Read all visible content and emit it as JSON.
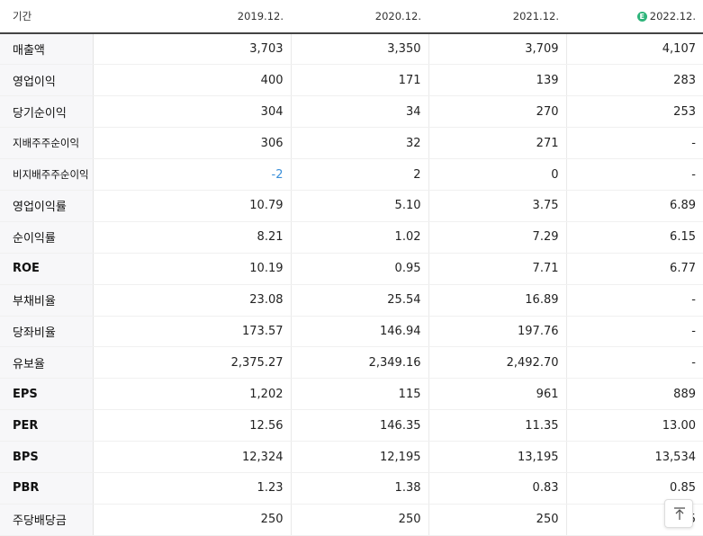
{
  "header": {
    "label": "기간",
    "periods": [
      "2019.12.",
      "2020.12.",
      "2021.12.",
      "2022.12."
    ],
    "estimate_icon": "estimate-e-icon",
    "estimate_icon_letter": "E",
    "estimate_icon_color": "#2eb47a"
  },
  "rows": [
    {
      "label": "매출액",
      "values": [
        "3,703",
        "3,350",
        "3,709",
        "4,107"
      ]
    },
    {
      "label": "영업이익",
      "values": [
        "400",
        "171",
        "139",
        "283"
      ]
    },
    {
      "label": "당기순이익",
      "values": [
        "304",
        "34",
        "270",
        "253"
      ]
    },
    {
      "label": "지배주주순이익",
      "values": [
        "306",
        "32",
        "271",
        "-"
      ]
    },
    {
      "label": "비지배주주순이익",
      "values": [
        "-2",
        "2",
        "0",
        "-"
      ]
    },
    {
      "label": "영업이익률",
      "values": [
        "10.79",
        "5.10",
        "3.75",
        "6.89"
      ]
    },
    {
      "label": "순이익률",
      "values": [
        "8.21",
        "1.02",
        "7.29",
        "6.15"
      ]
    },
    {
      "label": "ROE",
      "values": [
        "10.19",
        "0.95",
        "7.71",
        "6.77"
      ]
    },
    {
      "label": "부채비율",
      "values": [
        "23.08",
        "25.54",
        "16.89",
        "-"
      ]
    },
    {
      "label": "당좌비율",
      "values": [
        "173.57",
        "146.94",
        "197.76",
        "-"
      ]
    },
    {
      "label": "유보율",
      "values": [
        "2,375.27",
        "2,349.16",
        "2,492.70",
        "-"
      ]
    },
    {
      "label": "EPS",
      "values": [
        "1,202",
        "115",
        "961",
        "889"
      ]
    },
    {
      "label": "PER",
      "values": [
        "12.56",
        "146.35",
        "11.35",
        "13.00"
      ]
    },
    {
      "label": "BPS",
      "values": [
        "12,324",
        "12,195",
        "13,195",
        "13,534"
      ]
    },
    {
      "label": "PBR",
      "values": [
        "1.23",
        "1.38",
        "0.83",
        "0.85"
      ]
    },
    {
      "label": "주당배당금",
      "values": [
        "250",
        "250",
        "250",
        "5"
      ]
    }
  ],
  "colors": {
    "negative": "#3a8fd9",
    "label_bg": "#f7f7f9"
  },
  "scroll_top_icon": "arrow-up-to-top-icon"
}
